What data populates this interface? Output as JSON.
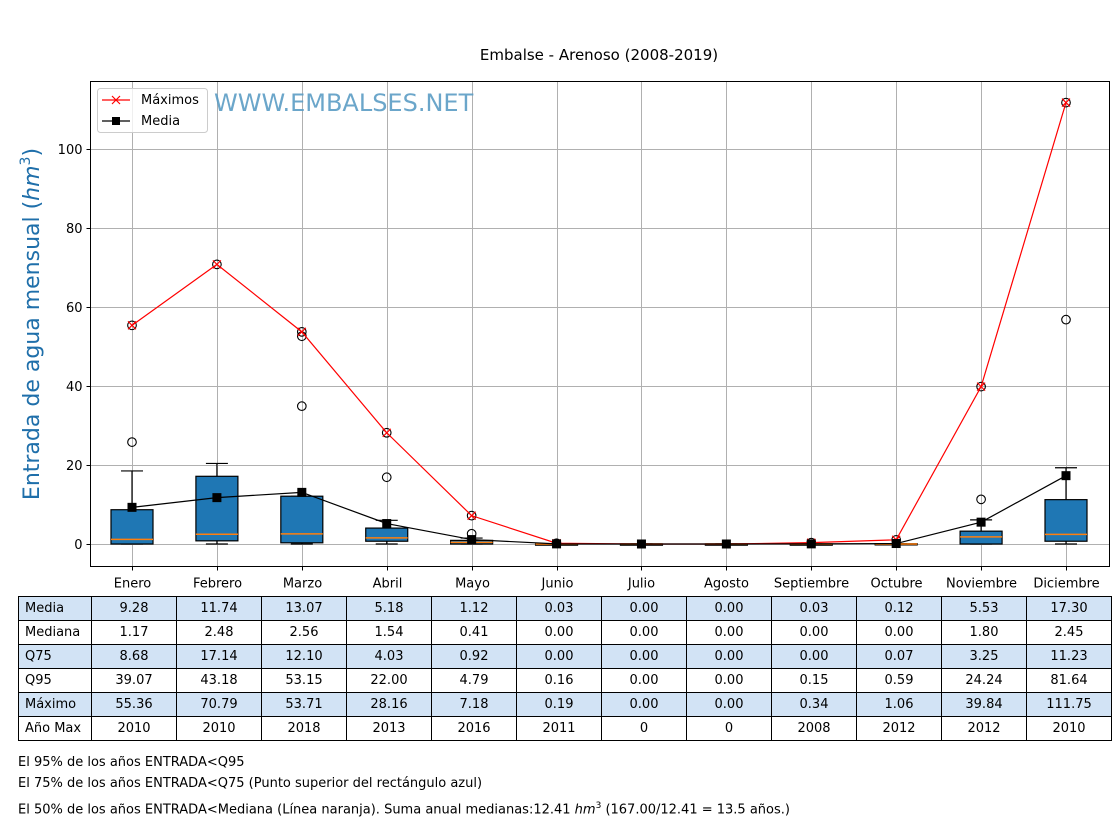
{
  "chart_data": {
    "type": "box",
    "title": "Embalse - Arenoso (2008-2019)",
    "ylabel": "Entrada de agua mensual",
    "ylabel_unit_base": "hm",
    "ylabel_unit_exp": "3",
    "xlabel": "",
    "ylim": [
      -6,
      117
    ],
    "yticks": [
      0,
      20,
      40,
      60,
      80,
      100
    ],
    "grid": true,
    "watermark": "WWW.EMBALSES.NET",
    "legend": {
      "placement": "top-left",
      "entries": [
        {
          "label": "Máximos",
          "color": "#ff0000",
          "marker": "x"
        },
        {
          "label": "Media",
          "color": "#000000",
          "marker": "square"
        }
      ]
    },
    "categories": [
      "Enero",
      "Febrero",
      "Marzo",
      "Abril",
      "Mayo",
      "Junio",
      "Julio",
      "Agosto",
      "Septiembre",
      "Octubre",
      "Noviembre",
      "Diciembre"
    ],
    "series": [
      {
        "name": "Máximos",
        "type": "line",
        "color": "#ff0000",
        "values": [
          55.36,
          70.79,
          53.71,
          28.16,
          7.18,
          0.19,
          0.0,
          0.0,
          0.34,
          1.06,
          39.84,
          111.75
        ]
      },
      {
        "name": "Media",
        "type": "line",
        "color": "#000000",
        "values": [
          9.28,
          11.74,
          13.07,
          5.18,
          1.12,
          0.03,
          0.0,
          0.0,
          0.03,
          0.12,
          5.53,
          17.3
        ]
      }
    ],
    "boxes": [
      {
        "q1": 0.0,
        "median": 1.17,
        "q3": 8.68,
        "whisker_low": 0.0,
        "whisker_high": 18.5,
        "outliers": [
          25.8,
          55.36
        ]
      },
      {
        "q1": 0.8,
        "median": 2.48,
        "q3": 17.14,
        "whisker_low": 0.0,
        "whisker_high": 20.4,
        "outliers": [
          70.79
        ]
      },
      {
        "q1": 0.3,
        "median": 2.56,
        "q3": 12.1,
        "whisker_low": 0.0,
        "whisker_high": 12.1,
        "outliers": [
          34.9,
          52.6,
          53.71
        ]
      },
      {
        "q1": 0.7,
        "median": 1.54,
        "q3": 4.03,
        "whisker_low": 0.0,
        "whisker_high": 6.0,
        "outliers": [
          16.9,
          28.16
        ]
      },
      {
        "q1": 0.0,
        "median": 0.41,
        "q3": 0.92,
        "whisker_low": 0.0,
        "whisker_high": 1.5,
        "outliers": [
          2.6,
          7.18
        ]
      },
      {
        "q1": 0.0,
        "median": 0.0,
        "q3": 0.0,
        "whisker_low": 0.0,
        "whisker_high": 0.0,
        "outliers": [
          0.19
        ]
      },
      {
        "q1": 0.0,
        "median": 0.0,
        "q3": 0.0,
        "whisker_low": 0.0,
        "whisker_high": 0.0,
        "outliers": []
      },
      {
        "q1": 0.0,
        "median": 0.0,
        "q3": 0.0,
        "whisker_low": 0.0,
        "whisker_high": 0.0,
        "outliers": []
      },
      {
        "q1": 0.0,
        "median": 0.0,
        "q3": 0.0,
        "whisker_low": 0.0,
        "whisker_high": 0.0,
        "outliers": [
          0.34
        ]
      },
      {
        "q1": 0.0,
        "median": 0.0,
        "q3": 0.07,
        "whisker_low": 0.0,
        "whisker_high": 0.1,
        "outliers": [
          1.06
        ]
      },
      {
        "q1": 0.0,
        "median": 1.8,
        "q3": 3.25,
        "whisker_low": 0.0,
        "whisker_high": 6.1,
        "outliers": [
          11.3,
          39.84
        ]
      },
      {
        "q1": 0.7,
        "median": 2.45,
        "q3": 11.23,
        "whisker_low": 0.0,
        "whisker_high": 19.3,
        "outliers": [
          56.8,
          111.75
        ]
      }
    ],
    "colors": {
      "box_fill": "#1f77b4",
      "median_line": "#ff7f0e",
      "maximos": "#ff0000",
      "media": "#000000",
      "ylabel": "#1f6faa",
      "watermark": "#5b9cc4",
      "grid": "#b0b0b0"
    }
  },
  "table": {
    "rows": [
      {
        "label": "Media",
        "shaded": true,
        "values": [
          "9.28",
          "11.74",
          "13.07",
          "5.18",
          "1.12",
          "0.03",
          "0.00",
          "0.00",
          "0.03",
          "0.12",
          "5.53",
          "17.30"
        ]
      },
      {
        "label": "Mediana",
        "shaded": false,
        "values": [
          "1.17",
          "2.48",
          "2.56",
          "1.54",
          "0.41",
          "0.00",
          "0.00",
          "0.00",
          "0.00",
          "0.00",
          "1.80",
          "2.45"
        ]
      },
      {
        "label": "Q75",
        "shaded": true,
        "values": [
          "8.68",
          "17.14",
          "12.10",
          "4.03",
          "0.92",
          "0.00",
          "0.00",
          "0.00",
          "0.00",
          "0.07",
          "3.25",
          "11.23"
        ]
      },
      {
        "label": "Q95",
        "shaded": false,
        "values": [
          "39.07",
          "43.18",
          "53.15",
          "22.00",
          "4.79",
          "0.16",
          "0.00",
          "0.00",
          "0.15",
          "0.59",
          "24.24",
          "81.64"
        ]
      },
      {
        "label": "Máximo",
        "shaded": true,
        "values": [
          "55.36",
          "70.79",
          "53.71",
          "28.16",
          "7.18",
          "0.19",
          "0.00",
          "0.00",
          "0.34",
          "1.06",
          "39.84",
          "111.75"
        ]
      },
      {
        "label": "Año Max",
        "shaded": false,
        "values": [
          "2010",
          "2010",
          "2018",
          "2013",
          "2016",
          "2011",
          "0",
          "0",
          "2008",
          "2012",
          "2012",
          "2010"
        ]
      }
    ]
  },
  "notes": {
    "line1": "El 95% de los años ENTRADA<Q95",
    "line2": "El 75% de los años ENTRADA<Q75 (Punto superior del rectángulo azul)",
    "line3_prefix": "El 50% de los años ENTRADA<Mediana (Línea naranja). Suma anual medianas:12.41 ",
    "line3_unit_base": "hm",
    "line3_unit_exp": "3",
    "line3_suffix": " (167.00/12.41 = 13.5 años.)"
  }
}
